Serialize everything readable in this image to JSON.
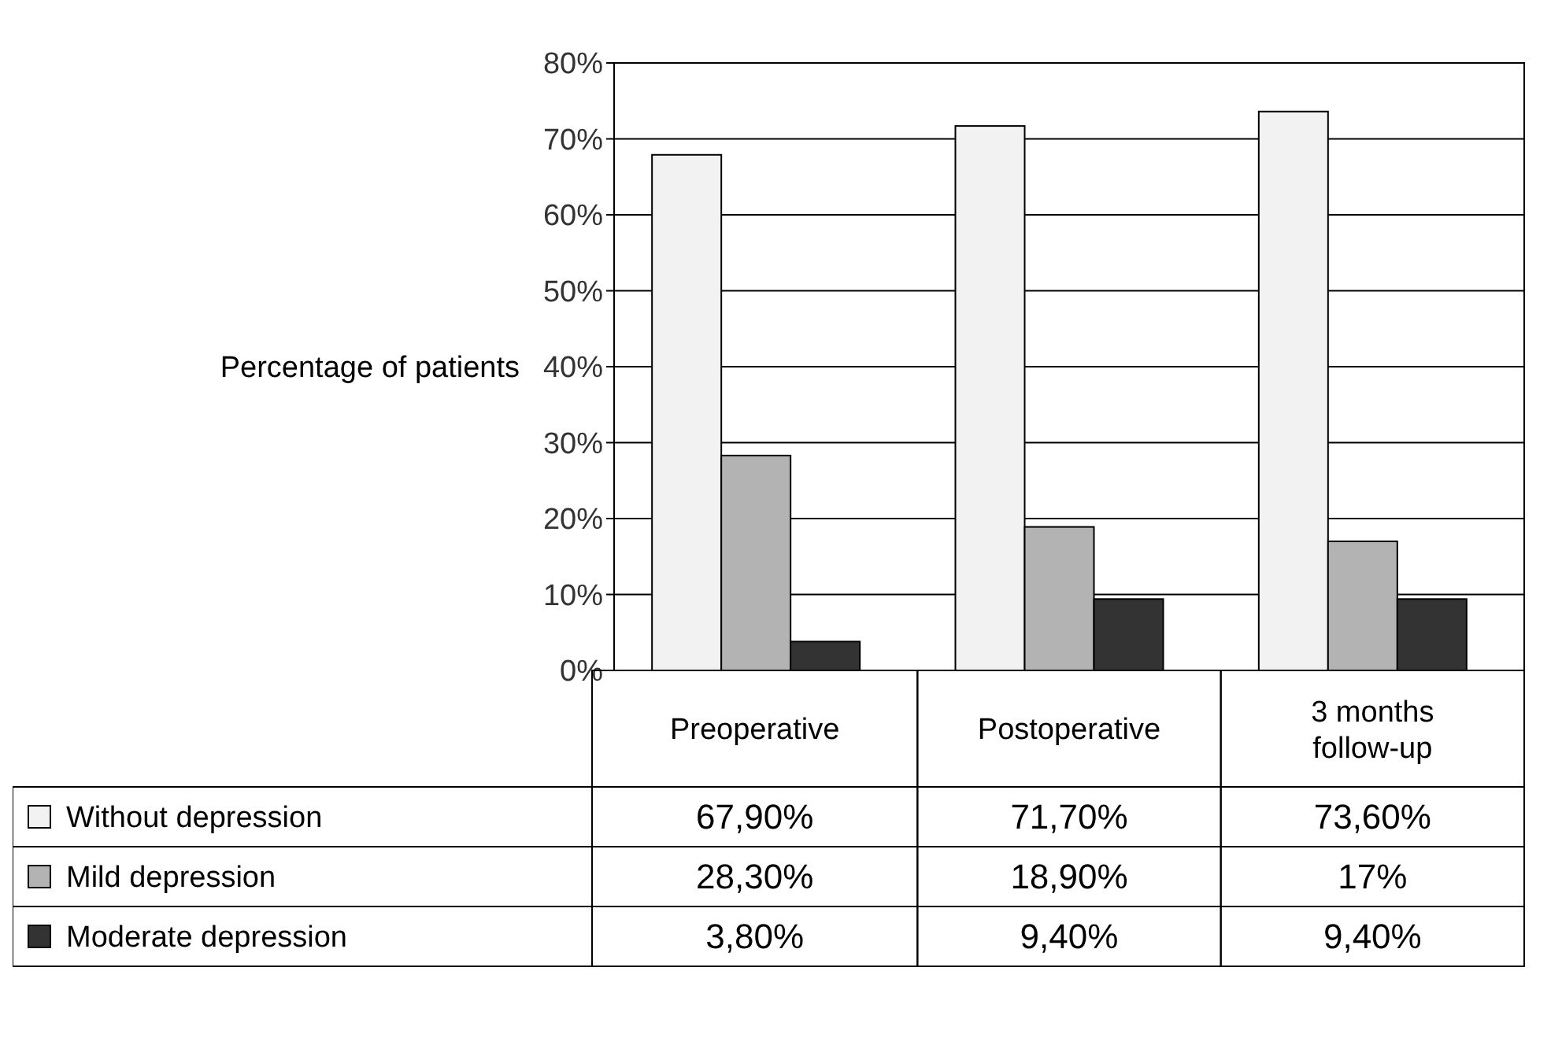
{
  "chart_data": {
    "type": "bar",
    "ylabel": "Percentage of patients",
    "categories": [
      "Preoperative",
      "Postoperative",
      "3 months follow-up"
    ],
    "series": [
      {
        "name": "Without depression",
        "color": "#f2f2f2",
        "values": [
          67.9,
          71.7,
          73.6
        ],
        "value_labels": [
          "67,90%",
          "71,70%",
          "73,60%"
        ]
      },
      {
        "name": "Mild depression",
        "color": "#b3b3b3",
        "values": [
          28.3,
          18.9,
          17
        ],
        "value_labels": [
          "28,30%",
          "18,90%",
          "17%"
        ]
      },
      {
        "name": "Moderate depression",
        "color": "#333333",
        "values": [
          3.8,
          9.4,
          9.4
        ],
        "value_labels": [
          "3,80%",
          "9,40%",
          "9,40%"
        ]
      }
    ],
    "ylim": [
      0,
      80
    ],
    "yticks": [
      {
        "value": 0,
        "label": "0%"
      },
      {
        "value": 10,
        "label": "10%"
      },
      {
        "value": 20,
        "label": "20%"
      },
      {
        "value": 30,
        "label": "30%"
      },
      {
        "value": 40,
        "label": "40%"
      },
      {
        "value": 50,
        "label": "50%"
      },
      {
        "value": 60,
        "label": "60%"
      },
      {
        "value": 70,
        "label": "70%"
      },
      {
        "value": 80,
        "label": "80%"
      }
    ],
    "grid": "y",
    "legend": "bottom"
  }
}
